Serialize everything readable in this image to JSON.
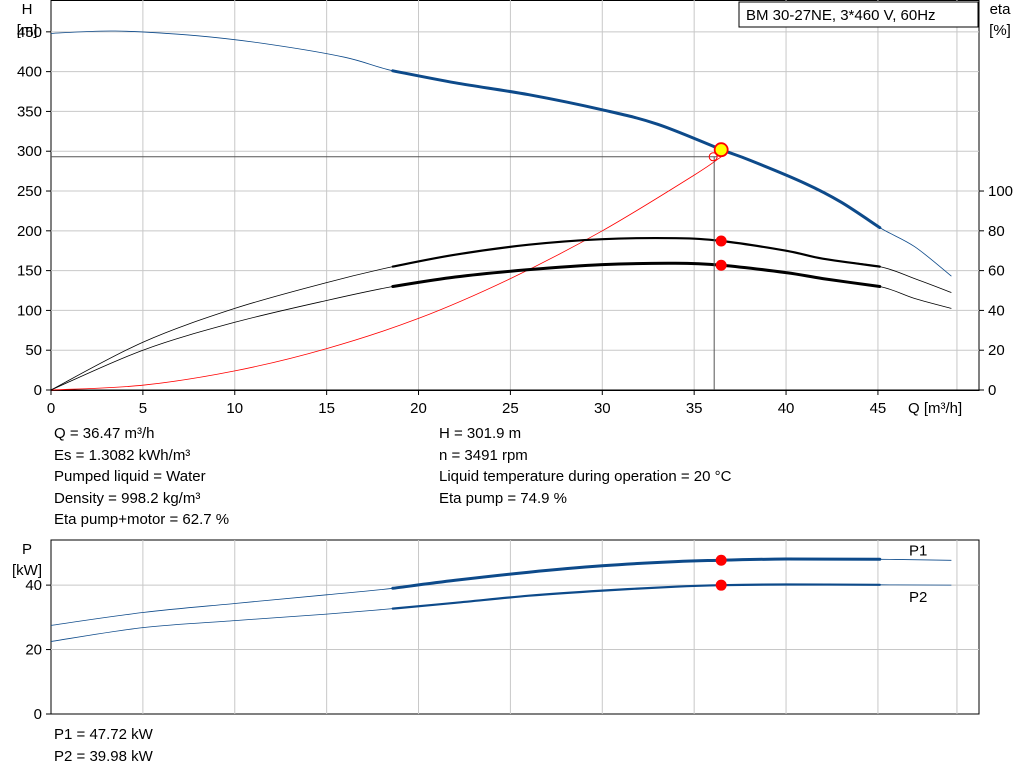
{
  "chart_data": [
    {
      "type": "line",
      "title": "BM 30-27NE, 3*460 V, 60Hz",
      "xlabel": "Q [m³/h]",
      "ylabel_left": [
        "H",
        "[m]"
      ],
      "ylabel_right": [
        "eta",
        "[%]"
      ],
      "xlim": [
        0,
        50.5
      ],
      "ylim_left": [
        0,
        490
      ],
      "ylim_right": [
        0,
        100
      ],
      "x_ticks": [
        0,
        5,
        10,
        15,
        20,
        25,
        30,
        35,
        40,
        45
      ],
      "y_ticks_left": [
        0,
        50,
        100,
        150,
        200,
        250,
        300,
        350,
        400,
        450
      ],
      "y_ticks_right": [
        0,
        20,
        40,
        60,
        80,
        100
      ],
      "grid": true,
      "series": [
        {
          "role": "head",
          "color": "#0d4a8a",
          "x": [
            0,
            3.5,
            8,
            12,
            16,
            18.6,
            22,
            26,
            30,
            33,
            36.5,
            38,
            41,
            43,
            45.1,
            47,
            49
          ],
          "y": [
            448,
            451,
            445,
            434,
            418,
            401,
            386,
            371,
            352,
            334,
            301.9,
            289,
            260,
            236,
            204,
            180,
            143
          ],
          "operating_range": [
            18.6,
            45.1
          ]
        },
        {
          "role": "eta_pump",
          "axis": "right",
          "color": "#000000",
          "x": [
            0,
            5,
            10,
            15,
            18.6,
            22,
            26,
            30,
            34,
            36.5,
            40,
            42,
            45.1,
            47,
            49
          ],
          "y": [
            0,
            24,
            41,
            54,
            62,
            68,
            73,
            75.8,
            76.3,
            74.9,
            70,
            66,
            62,
            56,
            49
          ],
          "operating_range": [
            18.6,
            45.1
          ]
        },
        {
          "role": "eta_pump_motor",
          "axis": "right",
          "color": "#000000",
          "x": [
            0,
            5,
            10,
            15,
            18.6,
            22,
            26,
            30,
            34,
            36.5,
            40,
            42,
            45.1,
            47,
            49
          ],
          "y": [
            0,
            20,
            34,
            45,
            52,
            56.8,
            60.5,
            63,
            63.7,
            62.7,
            59,
            56,
            52,
            46,
            41
          ],
          "operating_range": [
            18.6,
            45.1
          ]
        },
        {
          "role": "system_curve",
          "color": "#ff0000",
          "x": [
            0,
            5,
            10,
            15,
            20,
            25,
            30,
            35,
            36.47
          ],
          "y": [
            0,
            6,
            24,
            52,
            90,
            140,
            200,
            270,
            293
          ]
        }
      ],
      "duty_point": {
        "Q": 36.47,
        "H": 301.9,
        "eta_pump": 74.9,
        "eta_pump_motor": 62.7
      }
    },
    {
      "type": "line",
      "ylabel": [
        "P",
        "[kW]"
      ],
      "xlim": [
        0,
        50.5
      ],
      "ylim": [
        0,
        54
      ],
      "y_ticks": [
        0,
        20,
        40
      ],
      "x_ticks": [
        0,
        5,
        10,
        15,
        20,
        25,
        30,
        35,
        40,
        45
      ],
      "grid": true,
      "series": [
        {
          "name": "P1",
          "color": "#0d4a8a",
          "x": [
            0,
            5,
            10,
            15,
            18.6,
            22,
            26,
            30,
            34,
            36.5,
            40,
            45.1,
            49
          ],
          "y": [
            27.5,
            31.5,
            34.3,
            37,
            39,
            41.5,
            44,
            46,
            47.3,
            47.72,
            48.1,
            48,
            47.7
          ],
          "operating_range": [
            18.6,
            45.1
          ]
        },
        {
          "name": "P2",
          "color": "#0d4a8a",
          "x": [
            0,
            5,
            10,
            15,
            18.6,
            22,
            26,
            30,
            34,
            36.5,
            40,
            45.1,
            49
          ],
          "y": [
            22.5,
            26.8,
            29,
            31,
            32.7,
            34.5,
            36.7,
            38.3,
            39.5,
            39.98,
            40.2,
            40.1,
            40
          ],
          "operating_range": [
            18.6,
            45.1
          ]
        }
      ],
      "duty_point": {
        "Q": 36.47,
        "P1": 47.72,
        "P2": 39.98
      }
    }
  ],
  "info_left": [
    "Q = 36.47 m³/h",
    "Es = 1.3082 kWh/m³",
    "Pumped liquid = Water",
    "Density = 998.2 kg/m³",
    "Eta pump+motor = 62.7 %"
  ],
  "info_right": [
    "H = 301.9 m",
    "n = 3491 rpm",
    "Liquid temperature during operation = 20 °C",
    "Eta pump = 74.9 %"
  ],
  "info_power": [
    "P1 = 47.72 kW",
    "P2 = 39.98 kW"
  ],
  "colors": {
    "curve_blue": "#0d4a8a",
    "duty_red": "#ff0000",
    "marker_yellow": "#ffff00",
    "grid": "#c8c8c8"
  }
}
